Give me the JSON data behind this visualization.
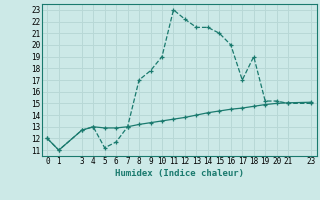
{
  "xlabel": "Humidex (Indice chaleur)",
  "line1_x": [
    0,
    1,
    3,
    4,
    5,
    6,
    7,
    8,
    9,
    10,
    11,
    12,
    13,
    14,
    15,
    16,
    17,
    18,
    19,
    20,
    21,
    23
  ],
  "line1_y": [
    12,
    11,
    12.7,
    13,
    11.2,
    11.7,
    13,
    17,
    17.8,
    19,
    23,
    22.2,
    21.5,
    21.5,
    21,
    20,
    17,
    19,
    15.2,
    15.2,
    15,
    15
  ],
  "line2_x": [
    0,
    1,
    3,
    4,
    5,
    6,
    7,
    8,
    9,
    10,
    11,
    12,
    13,
    14,
    15,
    16,
    17,
    18,
    19,
    20,
    21,
    23
  ],
  "line2_y": [
    12,
    11,
    12.7,
    13,
    12.9,
    12.9,
    13,
    13.2,
    13.35,
    13.5,
    13.65,
    13.8,
    14.0,
    14.2,
    14.35,
    14.5,
    14.6,
    14.75,
    14.9,
    15.0,
    15.05,
    15.1
  ],
  "line_color": "#1a7a6e",
  "bg_color": "#cce9e7",
  "grid_color": "#b8d8d6",
  "ylim": [
    10.5,
    23.5
  ],
  "xlim": [
    -0.5,
    23.5
  ],
  "yticks": [
    11,
    12,
    13,
    14,
    15,
    16,
    17,
    18,
    19,
    20,
    21,
    22,
    23
  ],
  "xticks": [
    0,
    1,
    3,
    4,
    5,
    6,
    7,
    8,
    9,
    10,
    11,
    12,
    13,
    14,
    15,
    16,
    17,
    18,
    19,
    20,
    21,
    23
  ],
  "tick_fontsize": 5.5,
  "xlabel_fontsize": 6.5
}
